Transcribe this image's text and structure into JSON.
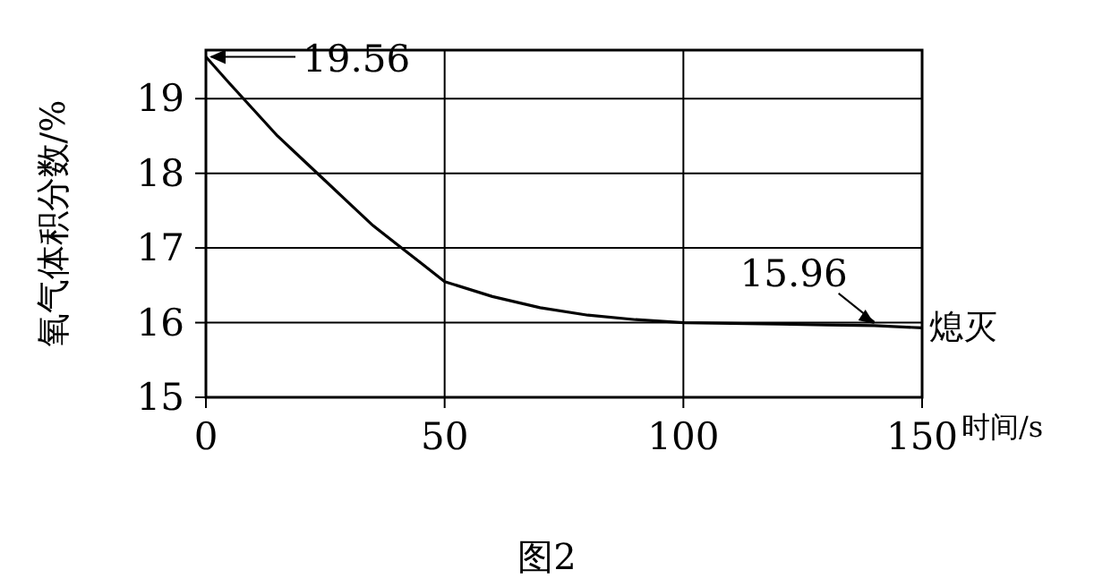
{
  "chart_data": {
    "type": "line",
    "xlabel": "时间/s",
    "ylabel": "氧气体积分数/%",
    "x": [
      0,
      5,
      10,
      15,
      20,
      25,
      30,
      35,
      40,
      45,
      50,
      60,
      70,
      80,
      90,
      100,
      110,
      120,
      130,
      140,
      150
    ],
    "values": [
      19.56,
      19.2,
      18.85,
      18.5,
      18.2,
      17.9,
      17.6,
      17.3,
      17.05,
      16.8,
      16.55,
      16.35,
      16.2,
      16.1,
      16.04,
      16.0,
      15.99,
      15.98,
      15.97,
      15.96,
      15.93
    ],
    "color": "#000000",
    "xlim": [
      0,
      150
    ],
    "ylim": [
      15,
      19.65
    ],
    "xticks": [
      0,
      50,
      100,
      150
    ],
    "yticks": [
      15,
      16,
      17,
      18,
      19
    ],
    "grid": true,
    "marker": "none",
    "line_style": "solid",
    "annotations": [
      {
        "text": "19.56",
        "x": 0,
        "y": 19.56
      },
      {
        "text": "15.96",
        "x": 140,
        "y": 15.96
      },
      {
        "text": "熄灭",
        "x": 150,
        "y": 15.93
      },
      "图2"
    ]
  }
}
